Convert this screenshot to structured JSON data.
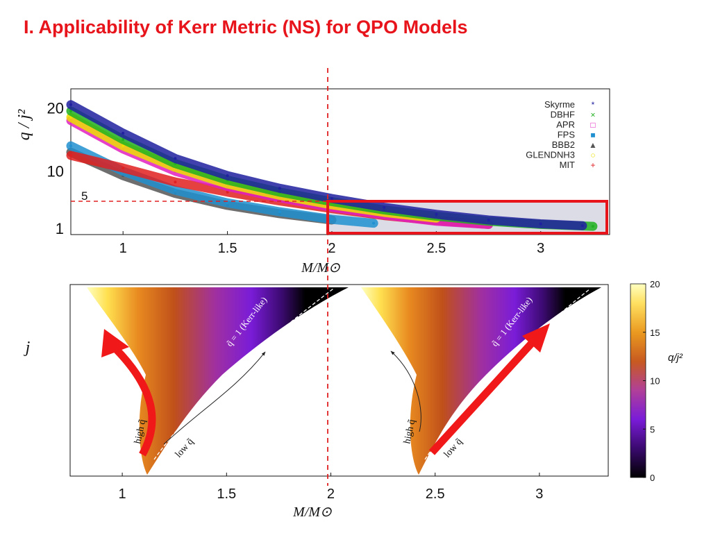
{
  "title": "I. Applicability of Kerr Metric (NS) for QPO Models",
  "colors": {
    "title": "#e8141b",
    "highlight": "#e8141b",
    "guide_line": "#e02020",
    "region_fill": "#dcdce6",
    "colormap": [
      "#000000",
      "#3a0a6e",
      "#7a1cd8",
      "#b04098",
      "#c85a20",
      "#ea9a20",
      "#ffe060",
      "#ffffc0"
    ]
  },
  "chart_data": [
    {
      "type": "scatter",
      "title": "",
      "xlabel": "M/M⊙",
      "ylabel": "q / j²",
      "xlim": [
        0.75,
        3.33
      ],
      "ylim": [
        0,
        23
      ],
      "x_ticks": [
        "1",
        "1.5",
        "2",
        "2.5",
        "3"
      ],
      "x_tick_values": [
        1,
        1.5,
        2,
        2.5,
        3
      ],
      "y_ticks": [
        "1",
        "10",
        "20"
      ],
      "y_tick_values": [
        1,
        10,
        20
      ],
      "legend_position": "top-right",
      "series": [
        {
          "name": "Skyrme",
          "marker": "*",
          "color": "#2020a0",
          "x": [
            0.75,
            1.0,
            1.25,
            1.5,
            1.75,
            2.0,
            2.25,
            2.5,
            2.75,
            3.0,
            3.2
          ],
          "y": [
            20.5,
            16.0,
            12.0,
            9.3,
            7.3,
            5.7,
            4.3,
            3.2,
            2.3,
            1.7,
            1.4
          ]
        },
        {
          "name": "DBHF",
          "marker": "×",
          "color": "#20b020",
          "x": [
            0.75,
            1.0,
            1.25,
            1.5,
            1.75,
            2.0,
            2.25,
            2.5,
            2.75,
            3.0,
            3.25
          ],
          "y": [
            19.5,
            15.0,
            11.2,
            8.6,
            6.7,
            5.2,
            3.9,
            2.9,
            2.1,
            1.6,
            1.3
          ]
        },
        {
          "name": "APR",
          "marker": "□",
          "color": "#e020c0",
          "x": [
            0.75,
            1.0,
            1.25,
            1.5,
            1.75,
            2.0,
            2.25,
            2.5,
            2.75
          ],
          "y": [
            18.0,
            13.5,
            10.0,
            7.6,
            5.8,
            4.3,
            3.1,
            2.1,
            1.6
          ]
        },
        {
          "name": "FPS",
          "marker": "■",
          "color": "#2090d0",
          "x": [
            0.75,
            1.0,
            1.25,
            1.5,
            1.75,
            2.0,
            2.2
          ],
          "y": [
            14.0,
            10.0,
            7.0,
            5.0,
            3.6,
            2.4,
            1.8
          ]
        },
        {
          "name": "BBB2",
          "marker": "▲",
          "color": "#555555",
          "x": [
            0.75,
            1.0,
            1.25,
            1.5,
            1.75,
            2.0
          ],
          "y": [
            13.0,
            9.3,
            6.5,
            4.6,
            3.3,
            2.3
          ]
        },
        {
          "name": "GLENDNH3",
          "marker": "○",
          "color": "#f0e000",
          "x": [
            0.75,
            1.0,
            1.25,
            1.5,
            1.75,
            2.0,
            2.25,
            2.5
          ],
          "y": [
            18.5,
            14.0,
            10.6,
            8.0,
            6.2,
            4.7,
            3.5,
            2.6
          ]
        },
        {
          "name": "MIT",
          "marker": "+",
          "color": "#e02020",
          "x": [
            0.75,
            1.0,
            1.25,
            1.5,
            1.75,
            2.0,
            2.25,
            2.5,
            2.75
          ],
          "y": [
            12.5,
            10.5,
            8.3,
            6.7,
            5.3,
            4.1,
            3.0,
            2.2,
            1.6
          ]
        }
      ],
      "annotations": [
        {
          "text": "5",
          "y": 5,
          "note": "horizontal dashed line"
        },
        {
          "type": "vertical dashed line",
          "x": 2
        },
        {
          "type": "highlight box",
          "x_range": [
            2.0,
            3.3
          ],
          "y_range": [
            0,
            5
          ]
        }
      ]
    },
    {
      "type": "heatmap",
      "title": "",
      "xlabel": "M/M⊙",
      "ylabel": "j",
      "x_ticks": [
        "1",
        "1.5",
        "2",
        "2.5",
        "3"
      ],
      "x_tick_values": [
        1,
        1.5,
        2,
        2.5,
        3
      ],
      "colorbar": {
        "label": "q/j²",
        "ticks": [
          "0",
          "5",
          "10",
          "15",
          "20"
        ],
        "tick_values": [
          0,
          5,
          10,
          15,
          20
        ],
        "range": [
          0,
          20
        ]
      },
      "annotations": {
        "kerr_line": "q̃ = 1 (Kerr-like)",
        "high": "high q̃",
        "low": "low q̃"
      },
      "panels": [
        {
          "position": "left",
          "highlight_arrow": "high q̃"
        },
        {
          "position": "right",
          "highlight_arrow": "low q̃"
        }
      ]
    }
  ]
}
